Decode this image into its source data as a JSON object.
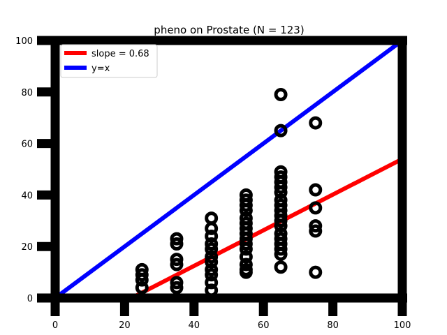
{
  "chart_data": {
    "type": "scatter",
    "title": "pheno on Prostate (N = 123)",
    "xlabel": "",
    "ylabel": "",
    "xlim": [
      0,
      100
    ],
    "ylim": [
      0,
      100
    ],
    "x_ticks": [
      0,
      20,
      40,
      60,
      80,
      100
    ],
    "y_ticks": [
      0,
      20,
      40,
      60,
      80,
      100
    ],
    "grid": false,
    "legend_position": "top-left",
    "colors": {
      "fit": "#ff0000",
      "identity": "#0000ff",
      "points": "#000000",
      "axes": "#000000"
    },
    "fit_line": {
      "label": "slope = 0.68",
      "points": [
        [
          22,
          0
        ],
        [
          100,
          54
        ]
      ]
    },
    "identity_line": {
      "label": "y=x",
      "points": [
        [
          0,
          0
        ],
        [
          100,
          100
        ]
      ]
    },
    "points": [
      [
        25,
        11
      ],
      [
        25,
        9
      ],
      [
        25,
        7
      ],
      [
        25,
        4
      ],
      [
        35,
        23
      ],
      [
        35,
        21
      ],
      [
        35,
        15
      ],
      [
        35,
        13
      ],
      [
        35,
        6
      ],
      [
        35,
        4
      ],
      [
        45,
        31
      ],
      [
        45,
        27
      ],
      [
        45,
        24
      ],
      [
        45,
        21
      ],
      [
        45,
        19
      ],
      [
        45,
        16
      ],
      [
        45,
        14
      ],
      [
        45,
        11
      ],
      [
        45,
        9
      ],
      [
        45,
        6
      ],
      [
        45,
        3
      ],
      [
        55,
        40
      ],
      [
        55,
        38
      ],
      [
        55,
        36
      ],
      [
        55,
        34
      ],
      [
        55,
        31
      ],
      [
        55,
        29
      ],
      [
        55,
        27
      ],
      [
        55,
        25
      ],
      [
        55,
        23
      ],
      [
        55,
        21
      ],
      [
        55,
        19
      ],
      [
        55,
        16
      ],
      [
        55,
        13
      ],
      [
        55,
        11
      ],
      [
        55,
        10
      ],
      [
        65,
        79
      ],
      [
        65,
        65
      ],
      [
        65,
        49
      ],
      [
        65,
        47
      ],
      [
        65,
        45
      ],
      [
        65,
        43
      ],
      [
        65,
        41
      ],
      [
        65,
        38
      ],
      [
        65,
        36
      ],
      [
        65,
        34
      ],
      [
        65,
        32
      ],
      [
        65,
        30
      ],
      [
        65,
        28
      ],
      [
        65,
        25
      ],
      [
        65,
        23
      ],
      [
        65,
        21
      ],
      [
        65,
        19
      ],
      [
        65,
        17
      ],
      [
        65,
        12
      ],
      [
        75,
        68
      ],
      [
        75,
        42
      ],
      [
        75,
        35
      ],
      [
        75,
        28
      ],
      [
        75,
        26
      ],
      [
        75,
        10
      ]
    ]
  }
}
